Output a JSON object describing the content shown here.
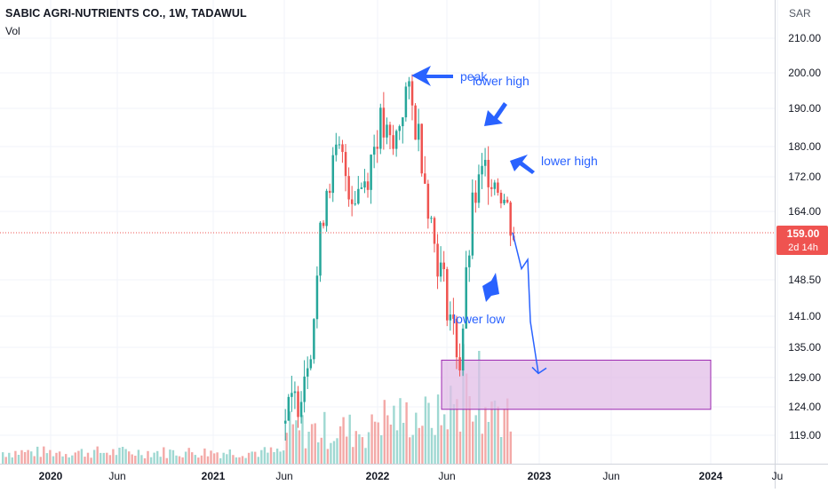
{
  "header": {
    "title": "SABIC AGRI-NUTRIENTS CO., 1W, TADAWUL",
    "volume_label": "Vol",
    "currency": "SAR"
  },
  "price_tag": {
    "price": "159.00",
    "countdown": "2d 14h"
  },
  "colors": {
    "up": "#26a69a",
    "down": "#ef5350",
    "annotation": "#2962ff",
    "zone_border": "#9c27b0",
    "zone_fill": "#e1bee7"
  },
  "annotations": [
    "peak",
    "lower high",
    "lower high",
    "lower low"
  ],
  "chart_data": {
    "type": "candlestick",
    "y_scale": "log",
    "ylim": [
      115,
      218
    ],
    "y_ticks": [
      "210.00",
      "200.00",
      "190.00",
      "180.00",
      "172.00",
      "164.00",
      "148.50",
      "141.00",
      "135.00",
      "129.00",
      "124.00",
      "119.00"
    ],
    "x_ticks": [
      "2020",
      "Jun",
      "2021",
      "Jun",
      "2022",
      "Jun",
      "2023",
      "Jun",
      "2024",
      "Ju"
    ],
    "last_price": 159.0,
    "candles_plotted": [
      {
        "date": "2021-06",
        "close": 122
      },
      {
        "date": "2021-07",
        "close": 126
      },
      {
        "date": "2021-08",
        "close": 138
      },
      {
        "date": "2021-09",
        "close": 170
      },
      {
        "date": "2021-10",
        "close": 178
      },
      {
        "date": "2021-11",
        "close": 168
      },
      {
        "date": "2021-12",
        "close": 172
      },
      {
        "date": "2022-01",
        "close": 186
      },
      {
        "date": "2022-02",
        "close": 178
      },
      {
        "date": "2022-03",
        "close": 195
      },
      {
        "date": "2022-04",
        "close": 182
      },
      {
        "date": "2022-05",
        "close": 158
      },
      {
        "date": "2022-06",
        "close": 145
      },
      {
        "date": "2022-07",
        "close": 132
      },
      {
        "date": "2022-08",
        "close": 166
      },
      {
        "date": "2022-09",
        "close": 175
      },
      {
        "date": "2022-10",
        "close": 170
      },
      {
        "date": "2022-11",
        "close": 159
      }
    ],
    "zone": {
      "label": "",
      "y_range": [
        123.5,
        132.5
      ]
    },
    "projection": [
      159,
      151,
      153,
      140,
      130
    ]
  }
}
